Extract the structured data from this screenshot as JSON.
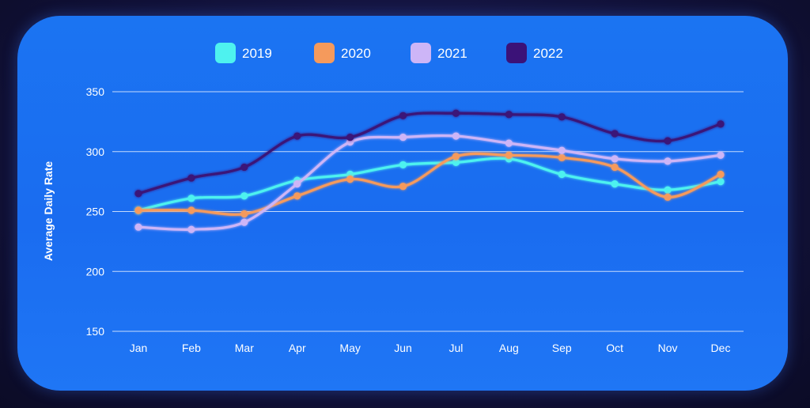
{
  "chart_data": {
    "type": "line",
    "title": "",
    "xlabel": "",
    "ylabel": "Average Daily Rate",
    "categories": [
      "Jan",
      "Feb",
      "Mar",
      "Apr",
      "May",
      "Jun",
      "Jul",
      "Aug",
      "Sep",
      "Oct",
      "Nov",
      "Dec"
    ],
    "ylim": [
      150,
      350
    ],
    "yticks": [
      350,
      300,
      250,
      200,
      150
    ],
    "grid": true,
    "legend_position": "top-center",
    "series": [
      {
        "name": "2019",
        "color": "#4ef2ef",
        "values": [
          251,
          261,
          263,
          276,
          281,
          289,
          291,
          294,
          281,
          273,
          268,
          275
        ]
      },
      {
        "name": "2020",
        "color": "#f59a5c",
        "values": [
          251,
          251,
          248,
          263,
          277,
          271,
          296,
          297,
          295,
          287,
          262,
          281
        ]
      },
      {
        "name": "2021",
        "color": "#cdb5f7",
        "values": [
          237,
          235,
          241,
          273,
          308,
          312,
          313,
          307,
          301,
          294,
          292,
          297
        ]
      },
      {
        "name": "2022",
        "color": "#3b1278",
        "values": [
          265,
          278,
          287,
          313,
          312,
          330,
          332,
          331,
          329,
          315,
          309,
          323
        ]
      }
    ]
  }
}
